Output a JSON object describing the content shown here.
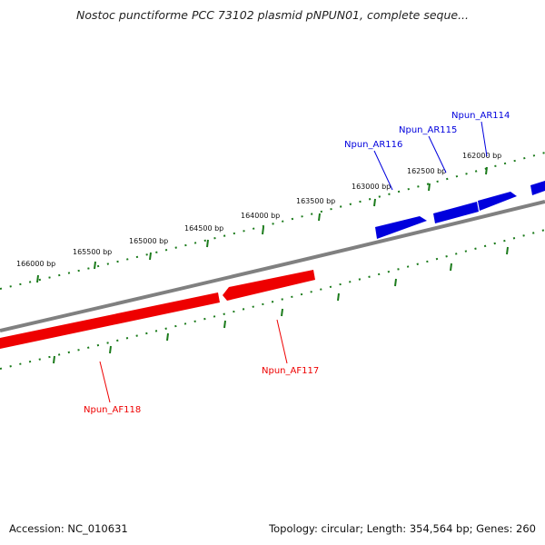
{
  "title": "Nostoc punctiforme PCC 73102 plasmid pNPUN01, complete seque...",
  "footer": {
    "accession": "Accession: NC_010631",
    "stats": "Topology: circular; Length: 354,564 bp; Genes: 260"
  },
  "ticks": [
    {
      "label": "166000 bp"
    },
    {
      "label": "165500 bp"
    },
    {
      "label": "165000 bp"
    },
    {
      "label": "164500 bp"
    },
    {
      "label": "164000 bp"
    },
    {
      "label": "163500 bp"
    },
    {
      "label": "163000 bp"
    },
    {
      "label": "162500 bp"
    },
    {
      "label": "162000 bp"
    }
  ],
  "genes_forward": [
    {
      "name": "Npun_AR116"
    },
    {
      "name": "Npun_AR115"
    },
    {
      "name": "Npun_AR114"
    }
  ],
  "genes_reverse": [
    {
      "name": "Npun_AF117"
    },
    {
      "name": "Npun_AF118"
    }
  ],
  "colors": {
    "forward": "#0000dd",
    "reverse": "#ee0000",
    "backbone": "#808080",
    "ticks": "#1a7a1a"
  }
}
